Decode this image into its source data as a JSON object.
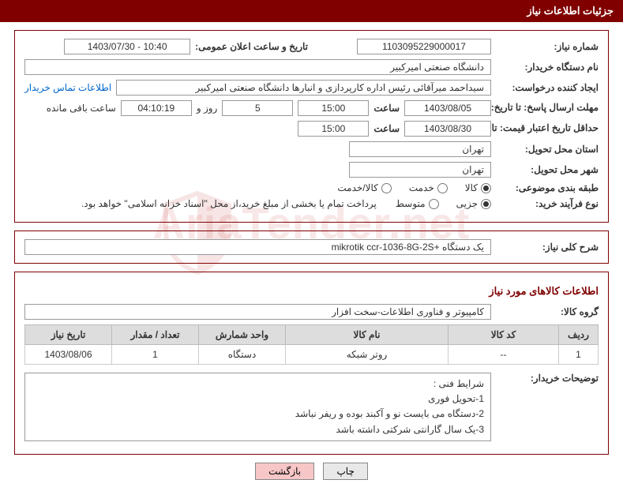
{
  "header": {
    "title": "جزئیات اطلاعات نیاز"
  },
  "fields": {
    "need_no_label": "شماره نیاز:",
    "need_no": "1103095229000017",
    "announce_label": "تاریخ و ساعت اعلان عمومی:",
    "announce_value": "1403/07/30 - 10:40",
    "buyer_org_label": "نام دستگاه خریدار:",
    "buyer_org": "دانشگاه صنعتی امیرکبیر",
    "requester_label": "ایجاد کننده درخواست:",
    "requester": "سیداحمد میرآقائی رئیس اداره کارپردازی و انبارها دانشگاه صنعتی امیرکبیر",
    "buyer_contact_link": "اطلاعات تماس خریدار",
    "deadline_label": "مهلت ارسال پاسخ: تا تاریخ:",
    "deadline_date": "1403/08/05",
    "time_word": "ساعت",
    "deadline_time": "15:00",
    "remain_days": "5",
    "days_and": "روز و",
    "remain_time": "04:10:19",
    "remain_tail": "ساعت باقی مانده",
    "validity_label": "حداقل تاریخ اعتبار قیمت: تا تاریخ:",
    "validity_date": "1403/08/30",
    "validity_time": "15:00",
    "province_label": "استان محل تحویل:",
    "province": "تهران",
    "city_label": "شهر محل تحویل:",
    "city": "تهران",
    "cat_label": "طبقه بندی موضوعی:",
    "proc_label": "نوع فرآیند خرید:",
    "proc_note": "پرداخت تمام یا بخشی از مبلغ خرید،از محل \"اسناد خزانه اسلامی\" خواهد بود."
  },
  "categories": [
    {
      "label": "کالا",
      "checked": true
    },
    {
      "label": "خدمت",
      "checked": false
    },
    {
      "label": "کالا/خدمت",
      "checked": false
    }
  ],
  "process_types": [
    {
      "label": "جزیی",
      "checked": true
    },
    {
      "label": "متوسط",
      "checked": false
    }
  ],
  "overview": {
    "label": "شرح کلی نیاز:",
    "value": "یک دستگاه +mikrotik   ccr-1036-8G-2S"
  },
  "goods_section": {
    "title": "اطلاعات کالاهای مورد نیاز",
    "group_label": "گروه کالا:",
    "group_value": "کامپیوتر و فناوری اطلاعات-سخت افزار"
  },
  "table": {
    "headers": [
      "ردیف",
      "کد کالا",
      "نام کالا",
      "واحد شمارش",
      "تعداد / مقدار",
      "تاریخ نیاز"
    ],
    "rows": [
      [
        "1",
        "--",
        "روتر شبکه",
        "دستگاه",
        "1",
        "1403/08/06"
      ]
    ],
    "col_widths": [
      "50px",
      "140px",
      "auto",
      "110px",
      "110px",
      "110px"
    ]
  },
  "buyer_notes": {
    "label": "توضیحات خریدار:",
    "lines": [
      "شرایط فنی :",
      "1-تحویل فوری",
      "2-دستگاه می بایست نو و آکبند بوده و ریفر نباشد",
      "3-یک سال گارانتی شرکتی داشته باشد"
    ]
  },
  "buttons": {
    "print": "چاپ",
    "back": "بازگشت"
  },
  "colors": {
    "header_bg": "#800000",
    "border": "#800000",
    "link": "#0066cc",
    "th_bg": "#dddddd"
  },
  "watermark": "AriaTender.net"
}
